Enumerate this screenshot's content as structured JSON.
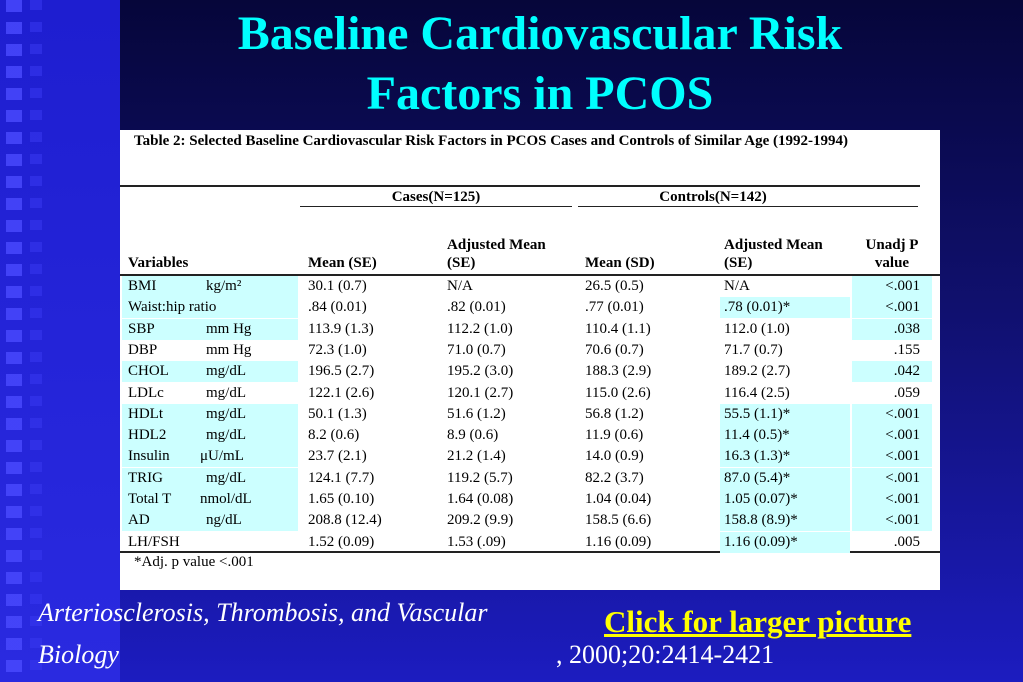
{
  "header": {
    "title": "Baseline Cardiovascular Risk Factors in PCOS"
  },
  "table": {
    "caption": "Table 2: Selected Baseline Cardiovascular Risk Factors in PCOS Cases and Controls of Similar Age (1992-1994)",
    "group_headers": [
      "Cases(N=125)",
      "Controls(N=142)"
    ],
    "columns": [
      "Variables",
      "Mean (SE)",
      "Adjusted Mean (SE)",
      "Mean (SD)",
      "Adjusted Mean (SE)",
      "Unadj P value"
    ],
    "rows": [
      {
        "variable": "BMI",
        "unit": "kg/m²",
        "cells": [
          "30.1 (0.7)",
          "N/A",
          "26.5 (0.5)",
          "N/A",
          "<.001"
        ]
      },
      {
        "variable": "Waist:hip ratio",
        "unit": "",
        "cells": [
          ".84 (0.01)",
          ".82 (0.01)",
          ".77 (0.01)",
          ".78 (0.01)*",
          "<.001"
        ]
      },
      {
        "variable": "SBP",
        "unit": "mm Hg",
        "cells": [
          "113.9 (1.3)",
          "112.2 (1.0)",
          "110.4 (1.1)",
          "112.0 (1.0)",
          ".038"
        ]
      },
      {
        "variable": "DBP",
        "unit": "mm Hg",
        "cells": [
          "72.3 (1.0)",
          "71.0 (0.7)",
          "70.6 (0.7)",
          "71.7 (0.7)",
          ".155"
        ]
      },
      {
        "variable": "CHOL",
        "unit": "mg/dL",
        "cells": [
          "196.5 (2.7)",
          "195.2 (3.0)",
          "188.3 (2.9)",
          "189.2 (2.7)",
          ".042"
        ]
      },
      {
        "variable": "LDLc",
        "unit": "mg/dL",
        "cells": [
          "122.1 (2.6)",
          "120.1 (2.7)",
          "115.0 (2.6)",
          "116.4 (2.5)",
          ".059"
        ]
      },
      {
        "variable": "HDLt",
        "unit": "mg/dL",
        "cells": [
          "50.1 (1.3)",
          "51.6 (1.2)",
          "56.8 (1.2)",
          "55.5 (1.1)*",
          "<.001"
        ]
      },
      {
        "variable": "HDL2",
        "unit": "mg/dL",
        "cells": [
          "8.2 (0.6)",
          "8.9 (0.6)",
          "11.9 (0.6)",
          "11.4 (0.5)*",
          "<.001"
        ]
      },
      {
        "variable": "Insulin",
        "unit": "μU/mL",
        "cells": [
          "23.7 (2.1)",
          "21.2 (1.4)",
          "14.0 (0.9)",
          "16.3 (1.3)*",
          "<.001"
        ]
      },
      {
        "variable": "TRIG",
        "unit": "mg/dL",
        "cells": [
          "124.1 (7.7)",
          "119.2 (5.7)",
          "82.2 (3.7)",
          "87.0 (5.4)*",
          "<.001"
        ]
      },
      {
        "variable": "Total T",
        "unit": "nmol/dL",
        "cells": [
          "1.65 (0.10)",
          "1.64 (0.08)",
          "1.04 (0.04)",
          "1.05 (0.07)*",
          "<.001"
        ]
      },
      {
        "variable": "AD",
        "unit": "ng/dL",
        "cells": [
          "208.8 (12.4)",
          "209.2 (9.9)",
          "158.5 (6.6)",
          "158.8 (8.9)*",
          "<.001"
        ]
      },
      {
        "variable": "LH/FSH",
        "unit": "",
        "cells": [
          "1.52 (0.09)",
          "1.53 (.09)",
          "1.16 (0.09)",
          "1.16 (0.09)*",
          ".005"
        ]
      }
    ],
    "footnote": "*Adj. p value <.001"
  },
  "citation": {
    "journal": "Arteriosclerosis, Thrombosis, and Vascular Biology",
    "details": ", 2000;20:2414-2421"
  },
  "link": "Click for larger picture"
}
